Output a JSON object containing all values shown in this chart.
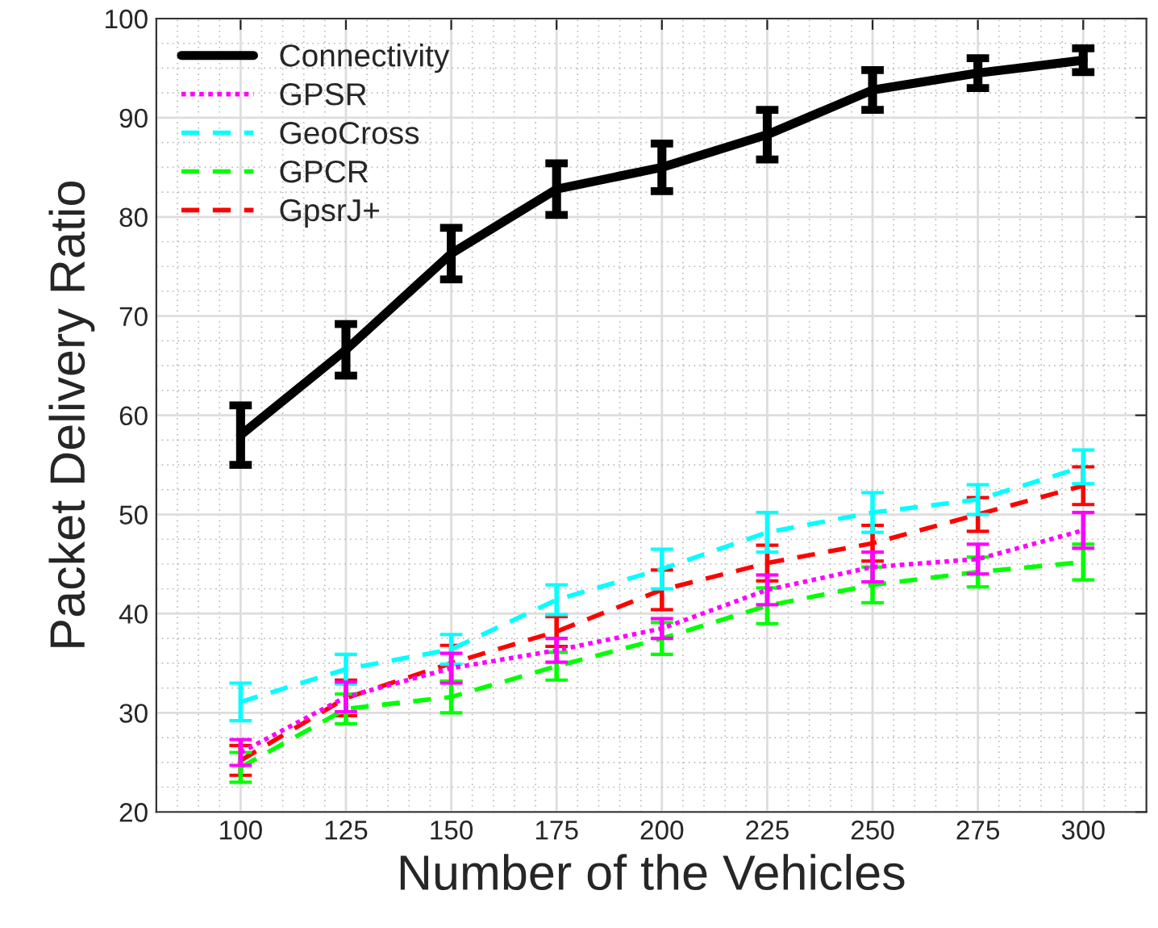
{
  "chart_data": {
    "type": "line",
    "xlabel": "Number of the Vehicles",
    "ylabel": "Packet Delivery Ratio",
    "x": [
      100,
      125,
      150,
      175,
      200,
      225,
      250,
      275,
      300
    ],
    "xlim": [
      80,
      315
    ],
    "xticks": [
      100,
      125,
      150,
      175,
      200,
      225,
      250,
      275,
      300
    ],
    "ylim": [
      20,
      100
    ],
    "yticks": [
      20,
      30,
      40,
      50,
      60,
      70,
      80,
      90,
      100
    ],
    "grid": true,
    "legend": "top left",
    "marker": "none",
    "series": [
      {
        "name": "Connectivity",
        "color": "#000000",
        "line_style": "solid",
        "values": [
          58,
          66.6,
          76.3,
          82.8,
          85,
          88.3,
          92.8,
          94.5,
          95.8
        ],
        "errors": [
          3,
          2.6,
          2.6,
          2.6,
          2.4,
          2.5,
          2,
          1.5,
          1.2
        ]
      },
      {
        "name": "GPSR",
        "color": "#ff00ff",
        "line_style": "dotted",
        "values": [
          26,
          31.6,
          34.5,
          36.3,
          38.5,
          42.4,
          44.7,
          45.5,
          48.4
        ],
        "errors": [
          1.3,
          1.5,
          1.5,
          1.2,
          1,
          1.5,
          1.5,
          1.5,
          1.8
        ]
      },
      {
        "name": "GeoCross",
        "color": "#00ffff",
        "line_style": "dashed",
        "values": [
          31.1,
          34.4,
          36.4,
          41.4,
          44.5,
          48.2,
          50.2,
          51.5,
          54.8
        ],
        "errors": [
          1.9,
          1.5,
          1.5,
          1.5,
          2,
          2,
          2,
          1.5,
          1.7
        ]
      },
      {
        "name": "GPCR",
        "color": "#00ff00",
        "line_style": "dashed",
        "values": [
          24.5,
          30.4,
          31.6,
          34.7,
          37.5,
          40.8,
          42.9,
          44.2,
          45.2
        ],
        "errors": [
          1.5,
          1.5,
          1.6,
          1.4,
          1.6,
          1.8,
          1.8,
          1.5,
          1.8
        ]
      },
      {
        "name": "GpsrJ+",
        "color": "#ff0000",
        "line_style": "dashed",
        "values": [
          25.2,
          31.5,
          35,
          38.2,
          42.4,
          45.1,
          47.1,
          50,
          52.9
        ],
        "errors": [
          1.5,
          1.8,
          1.8,
          1.5,
          2,
          1.8,
          1.8,
          1.7,
          1.9
        ]
      }
    ]
  }
}
